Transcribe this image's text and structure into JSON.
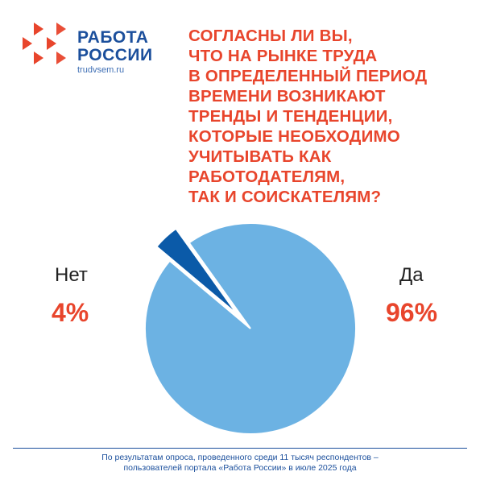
{
  "header": {
    "logo_line1": "РАБОТА",
    "logo_line2": "РОССИИ",
    "logo_url": "trudvsem.ru",
    "question_lines": [
      "СОГЛАСНЫ ЛИ ВЫ,",
      "ЧТО НА РЫНКЕ ТРУДА",
      "В ОПРЕДЕЛЕННЫЙ ПЕРИОД",
      "ВРЕМЕНИ ВОЗНИКАЮТ",
      "ТРЕНДЫ И ТЕНДЕНЦИИ,",
      "КОТОРЫЕ НЕОБХОДИМО",
      "УЧИТЫВАТЬ КАК",
      "РАБОТОДАТЕЛЯМ,",
      "ТАК И СОИСКАТЕЛЯМ?"
    ]
  },
  "colors": {
    "accent": "#e8452c",
    "brand": "#1b4f9c",
    "yes_slice": "#6cb2e3",
    "no_slice": "#0b5aa8"
  },
  "chart_data": {
    "type": "pie",
    "slices": [
      {
        "label": "Да",
        "value": 96,
        "value_label": "96%"
      },
      {
        "label": "Нет",
        "value": 4,
        "value_label": "4%"
      }
    ]
  },
  "footer": {
    "line1": "По результатам опроса, проведенного среди 11 тысяч респондентов –",
    "line2": "пользователей портала «Работа России» в июле 2025 года"
  }
}
